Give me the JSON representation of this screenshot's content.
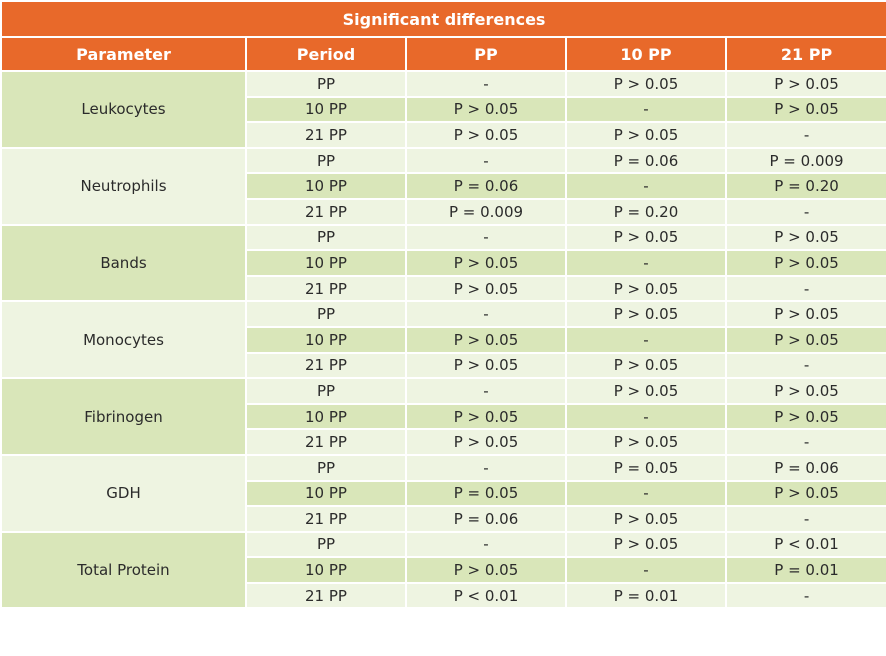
{
  "table": {
    "title": "Significant differences",
    "headers": [
      "Parameter",
      "Period",
      "PP",
      "10 PP",
      "21 PP"
    ],
    "groups": [
      {
        "parameter": "Leukocytes",
        "rows": [
          [
            "PP",
            "-",
            "P > 0.05",
            "P > 0.05"
          ],
          [
            "10 PP",
            "P > 0.05",
            "-",
            "P > 0.05"
          ],
          [
            "21 PP",
            "P > 0.05",
            "P > 0.05",
            "-"
          ]
        ]
      },
      {
        "parameter": "Neutrophils",
        "rows": [
          [
            "PP",
            "-",
            "P = 0.06",
            "P = 0.009"
          ],
          [
            "10 PP",
            "P = 0.06",
            "-",
            "P = 0.20"
          ],
          [
            "21 PP",
            "P = 0.009",
            "P = 0.20",
            "-"
          ]
        ]
      },
      {
        "parameter": "Bands",
        "rows": [
          [
            "PP",
            "-",
            "P > 0.05",
            "P > 0.05"
          ],
          [
            "10 PP",
            "P > 0.05",
            "-",
            "P > 0.05"
          ],
          [
            "21 PP",
            "P > 0.05",
            "P > 0.05",
            "-"
          ]
        ]
      },
      {
        "parameter": "Monocytes",
        "rows": [
          [
            "PP",
            "-",
            "P > 0.05",
            "P > 0.05"
          ],
          [
            "10 PP",
            "P > 0.05",
            "-",
            "P > 0.05"
          ],
          [
            "21 PP",
            "P > 0.05",
            "P > 0.05",
            "-"
          ]
        ]
      },
      {
        "parameter": "Fibrinogen",
        "rows": [
          [
            "PP",
            "-",
            "P > 0.05",
            "P > 0.05"
          ],
          [
            "10 PP",
            "P > 0.05",
            "-",
            "P > 0.05"
          ],
          [
            "21 PP",
            "P > 0.05",
            "P > 0.05",
            "-"
          ]
        ]
      },
      {
        "parameter": "GDH",
        "rows": [
          [
            "PP",
            "-",
            "P = 0.05",
            "P = 0.06"
          ],
          [
            "10 PP",
            "P = 0.05",
            "-",
            "P > 0.05"
          ],
          [
            "21 PP",
            "P = 0.06",
            "P > 0.05",
            "-"
          ]
        ]
      },
      {
        "parameter": "Total Protein",
        "rows": [
          [
            "PP",
            "-",
            "P > 0.05",
            "P < 0.01"
          ],
          [
            "10 PP",
            "P > 0.05",
            "-",
            "P = 0.01"
          ],
          [
            "21 PP",
            "P < 0.01",
            "P = 0.01",
            "-"
          ]
        ]
      }
    ]
  },
  "colors": {
    "header_orange": "#e8692a",
    "row_green": "#d9e6b9",
    "row_light": "#eef4e1"
  }
}
